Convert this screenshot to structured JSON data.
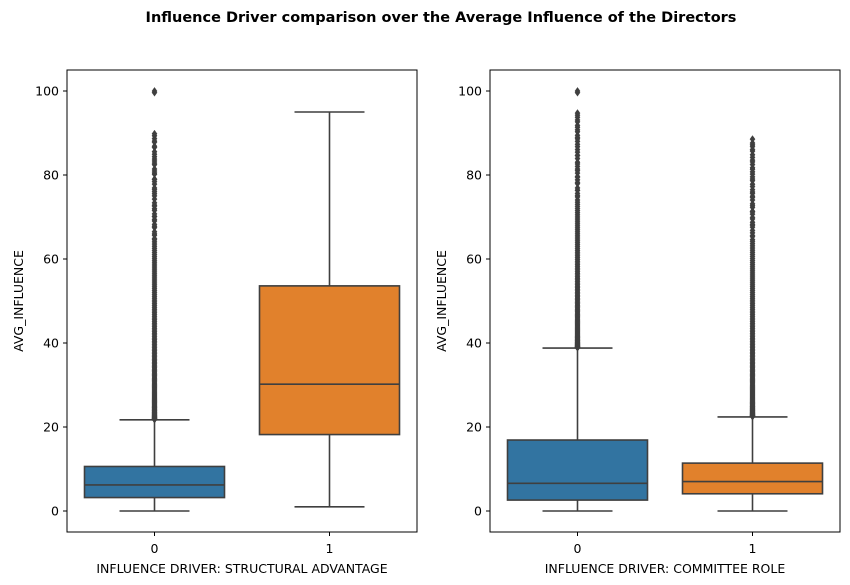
{
  "figure": {
    "title": "Influence Driver comparison over the Average Influence of the Directors"
  },
  "chart_data": [
    {
      "type": "box",
      "xlabel": "INFLUENCE DRIVER: STRUCTURAL ADVANTAGE",
      "ylabel": "AVG_INFLUENCE",
      "categories": [
        "0",
        "1"
      ],
      "ylim": [
        -5,
        105
      ],
      "yticks": [
        0,
        20,
        40,
        60,
        80,
        100
      ],
      "yticklabels": [
        "0",
        "20",
        "40",
        "60",
        "80",
        "100"
      ],
      "grid": false,
      "boxes": [
        {
          "category": "0",
          "color": "#3274a1",
          "whisker_low": 0,
          "q1": 3.2,
          "median": 6.2,
          "q3": 10.6,
          "whisker_high": 21.7,
          "outlier_range": [
            21.8,
            90
          ],
          "outlier_extras": [
            100
          ]
        },
        {
          "category": "1",
          "color": "#e1812c",
          "whisker_low": 1,
          "q1": 18.2,
          "median": 30.2,
          "q3": 53.6,
          "whisker_high": 95
        }
      ]
    },
    {
      "type": "box",
      "xlabel": "INFLUENCE DRIVER: COMMITTEE ROLE",
      "ylabel": "AVG_INFLUENCE",
      "categories": [
        "0",
        "1"
      ],
      "ylim": [
        -5,
        105
      ],
      "yticks": [
        0,
        20,
        40,
        60,
        80,
        100
      ],
      "yticklabels": [
        "0",
        "20",
        "40",
        "60",
        "80",
        "100"
      ],
      "grid": false,
      "boxes": [
        {
          "category": "0",
          "color": "#3274a1",
          "whisker_low": 0,
          "q1": 2.6,
          "median": 6.6,
          "q3": 16.9,
          "whisker_high": 38.8,
          "outlier_range": [
            38.9,
            95
          ],
          "outlier_extras": [
            100
          ]
        },
        {
          "category": "1",
          "color": "#e1812c",
          "whisker_low": 0,
          "q1": 4.1,
          "median": 7.0,
          "q3": 11.4,
          "whisker_high": 22.4,
          "outlier_range": [
            22.5,
            88.5
          ],
          "outlier_extras": []
        }
      ]
    }
  ]
}
